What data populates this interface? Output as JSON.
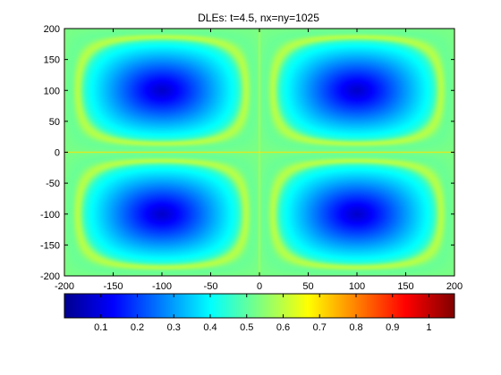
{
  "chart_data": {
    "type": "heatmap",
    "title": "DLEs: t=4.5, nx=ny=1025",
    "xlabel": "",
    "ylabel": "",
    "xlim": [
      -200,
      200
    ],
    "ylim": [
      -200,
      200
    ],
    "xticks": [
      -200,
      -150,
      -100,
      -50,
      0,
      50,
      100,
      150,
      200
    ],
    "yticks": [
      -200,
      -150,
      -100,
      -50,
      0,
      50,
      100,
      150,
      200
    ],
    "colormap": "jet",
    "colorbar": {
      "location": "bottom",
      "range": [
        0,
        1.07
      ],
      "ticks": [
        0.1,
        0.2,
        0.3,
        0.4,
        0.5,
        0.6,
        0.7,
        0.8,
        0.9,
        1
      ]
    },
    "pattern": {
      "cells": [
        {
          "center": [
            -100,
            100
          ]
        },
        {
          "center": [
            100,
            100
          ]
        },
        {
          "center": [
            -100,
            -100
          ]
        },
        {
          "center": [
            100,
            -100
          ]
        }
      ],
      "center_value": 0.08,
      "separatrix_value": 0.7,
      "separatrices": {
        "x": [
          -200,
          0,
          200
        ],
        "y": [
          0
        ]
      }
    }
  }
}
